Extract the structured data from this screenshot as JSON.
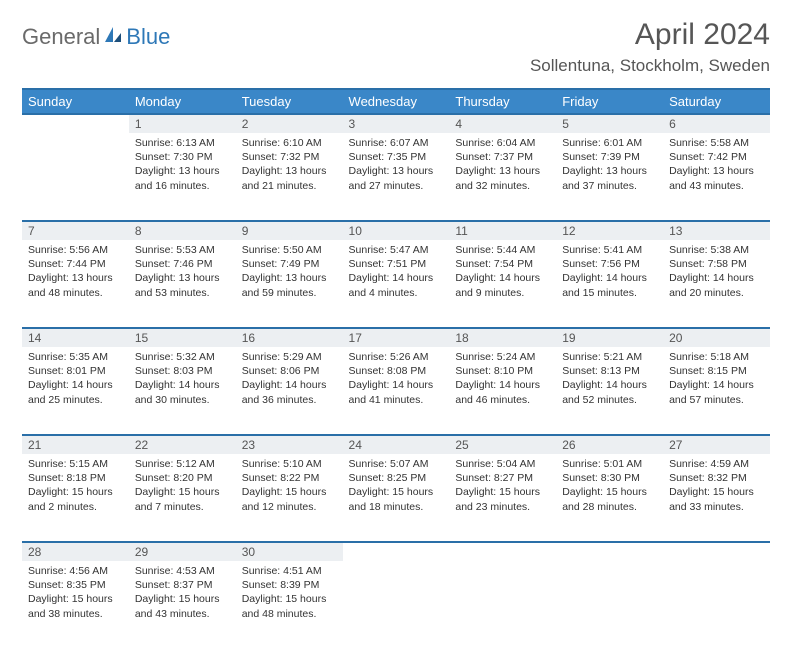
{
  "brand": {
    "part1": "General",
    "part2": "Blue"
  },
  "title": "April 2024",
  "location": "Sollentuna, Stockholm, Sweden",
  "colors": {
    "header_bg": "#3a87c8",
    "header_border": "#2a6fa8",
    "daynum_bg": "#eceff2",
    "text": "#333333",
    "title_color": "#565656",
    "brand_gray": "#6a6a6a",
    "brand_blue": "#2e78b7",
    "page_bg": "#ffffff"
  },
  "typography": {
    "title_fontsize": 30,
    "location_fontsize": 17,
    "header_fontsize": 13,
    "daynum_fontsize": 12,
    "cell_fontsize": 10.5,
    "logo_fontsize": 22
  },
  "day_headers": [
    "Sunday",
    "Monday",
    "Tuesday",
    "Wednesday",
    "Thursday",
    "Friday",
    "Saturday"
  ],
  "weeks": [
    {
      "nums": [
        "",
        "1",
        "2",
        "3",
        "4",
        "5",
        "6"
      ],
      "cells": [
        null,
        {
          "sunrise": "Sunrise: 6:13 AM",
          "sunset": "Sunset: 7:30 PM",
          "day1": "Daylight: 13 hours",
          "day2": "and 16 minutes."
        },
        {
          "sunrise": "Sunrise: 6:10 AM",
          "sunset": "Sunset: 7:32 PM",
          "day1": "Daylight: 13 hours",
          "day2": "and 21 minutes."
        },
        {
          "sunrise": "Sunrise: 6:07 AM",
          "sunset": "Sunset: 7:35 PM",
          "day1": "Daylight: 13 hours",
          "day2": "and 27 minutes."
        },
        {
          "sunrise": "Sunrise: 6:04 AM",
          "sunset": "Sunset: 7:37 PM",
          "day1": "Daylight: 13 hours",
          "day2": "and 32 minutes."
        },
        {
          "sunrise": "Sunrise: 6:01 AM",
          "sunset": "Sunset: 7:39 PM",
          "day1": "Daylight: 13 hours",
          "day2": "and 37 minutes."
        },
        {
          "sunrise": "Sunrise: 5:58 AM",
          "sunset": "Sunset: 7:42 PM",
          "day1": "Daylight: 13 hours",
          "day2": "and 43 minutes."
        }
      ]
    },
    {
      "nums": [
        "7",
        "8",
        "9",
        "10",
        "11",
        "12",
        "13"
      ],
      "cells": [
        {
          "sunrise": "Sunrise: 5:56 AM",
          "sunset": "Sunset: 7:44 PM",
          "day1": "Daylight: 13 hours",
          "day2": "and 48 minutes."
        },
        {
          "sunrise": "Sunrise: 5:53 AM",
          "sunset": "Sunset: 7:46 PM",
          "day1": "Daylight: 13 hours",
          "day2": "and 53 minutes."
        },
        {
          "sunrise": "Sunrise: 5:50 AM",
          "sunset": "Sunset: 7:49 PM",
          "day1": "Daylight: 13 hours",
          "day2": "and 59 minutes."
        },
        {
          "sunrise": "Sunrise: 5:47 AM",
          "sunset": "Sunset: 7:51 PM",
          "day1": "Daylight: 14 hours",
          "day2": "and 4 minutes."
        },
        {
          "sunrise": "Sunrise: 5:44 AM",
          "sunset": "Sunset: 7:54 PM",
          "day1": "Daylight: 14 hours",
          "day2": "and 9 minutes."
        },
        {
          "sunrise": "Sunrise: 5:41 AM",
          "sunset": "Sunset: 7:56 PM",
          "day1": "Daylight: 14 hours",
          "day2": "and 15 minutes."
        },
        {
          "sunrise": "Sunrise: 5:38 AM",
          "sunset": "Sunset: 7:58 PM",
          "day1": "Daylight: 14 hours",
          "day2": "and 20 minutes."
        }
      ]
    },
    {
      "nums": [
        "14",
        "15",
        "16",
        "17",
        "18",
        "19",
        "20"
      ],
      "cells": [
        {
          "sunrise": "Sunrise: 5:35 AM",
          "sunset": "Sunset: 8:01 PM",
          "day1": "Daylight: 14 hours",
          "day2": "and 25 minutes."
        },
        {
          "sunrise": "Sunrise: 5:32 AM",
          "sunset": "Sunset: 8:03 PM",
          "day1": "Daylight: 14 hours",
          "day2": "and 30 minutes."
        },
        {
          "sunrise": "Sunrise: 5:29 AM",
          "sunset": "Sunset: 8:06 PM",
          "day1": "Daylight: 14 hours",
          "day2": "and 36 minutes."
        },
        {
          "sunrise": "Sunrise: 5:26 AM",
          "sunset": "Sunset: 8:08 PM",
          "day1": "Daylight: 14 hours",
          "day2": "and 41 minutes."
        },
        {
          "sunrise": "Sunrise: 5:24 AM",
          "sunset": "Sunset: 8:10 PM",
          "day1": "Daylight: 14 hours",
          "day2": "and 46 minutes."
        },
        {
          "sunrise": "Sunrise: 5:21 AM",
          "sunset": "Sunset: 8:13 PM",
          "day1": "Daylight: 14 hours",
          "day2": "and 52 minutes."
        },
        {
          "sunrise": "Sunrise: 5:18 AM",
          "sunset": "Sunset: 8:15 PM",
          "day1": "Daylight: 14 hours",
          "day2": "and 57 minutes."
        }
      ]
    },
    {
      "nums": [
        "21",
        "22",
        "23",
        "24",
        "25",
        "26",
        "27"
      ],
      "cells": [
        {
          "sunrise": "Sunrise: 5:15 AM",
          "sunset": "Sunset: 8:18 PM",
          "day1": "Daylight: 15 hours",
          "day2": "and 2 minutes."
        },
        {
          "sunrise": "Sunrise: 5:12 AM",
          "sunset": "Sunset: 8:20 PM",
          "day1": "Daylight: 15 hours",
          "day2": "and 7 minutes."
        },
        {
          "sunrise": "Sunrise: 5:10 AM",
          "sunset": "Sunset: 8:22 PM",
          "day1": "Daylight: 15 hours",
          "day2": "and 12 minutes."
        },
        {
          "sunrise": "Sunrise: 5:07 AM",
          "sunset": "Sunset: 8:25 PM",
          "day1": "Daylight: 15 hours",
          "day2": "and 18 minutes."
        },
        {
          "sunrise": "Sunrise: 5:04 AM",
          "sunset": "Sunset: 8:27 PM",
          "day1": "Daylight: 15 hours",
          "day2": "and 23 minutes."
        },
        {
          "sunrise": "Sunrise: 5:01 AM",
          "sunset": "Sunset: 8:30 PM",
          "day1": "Daylight: 15 hours",
          "day2": "and 28 minutes."
        },
        {
          "sunrise": "Sunrise: 4:59 AM",
          "sunset": "Sunset: 8:32 PM",
          "day1": "Daylight: 15 hours",
          "day2": "and 33 minutes."
        }
      ]
    },
    {
      "nums": [
        "28",
        "29",
        "30",
        "",
        "",
        "",
        ""
      ],
      "cells": [
        {
          "sunrise": "Sunrise: 4:56 AM",
          "sunset": "Sunset: 8:35 PM",
          "day1": "Daylight: 15 hours",
          "day2": "and 38 minutes."
        },
        {
          "sunrise": "Sunrise: 4:53 AM",
          "sunset": "Sunset: 8:37 PM",
          "day1": "Daylight: 15 hours",
          "day2": "and 43 minutes."
        },
        {
          "sunrise": "Sunrise: 4:51 AM",
          "sunset": "Sunset: 8:39 PM",
          "day1": "Daylight: 15 hours",
          "day2": "and 48 minutes."
        },
        null,
        null,
        null,
        null
      ]
    }
  ]
}
